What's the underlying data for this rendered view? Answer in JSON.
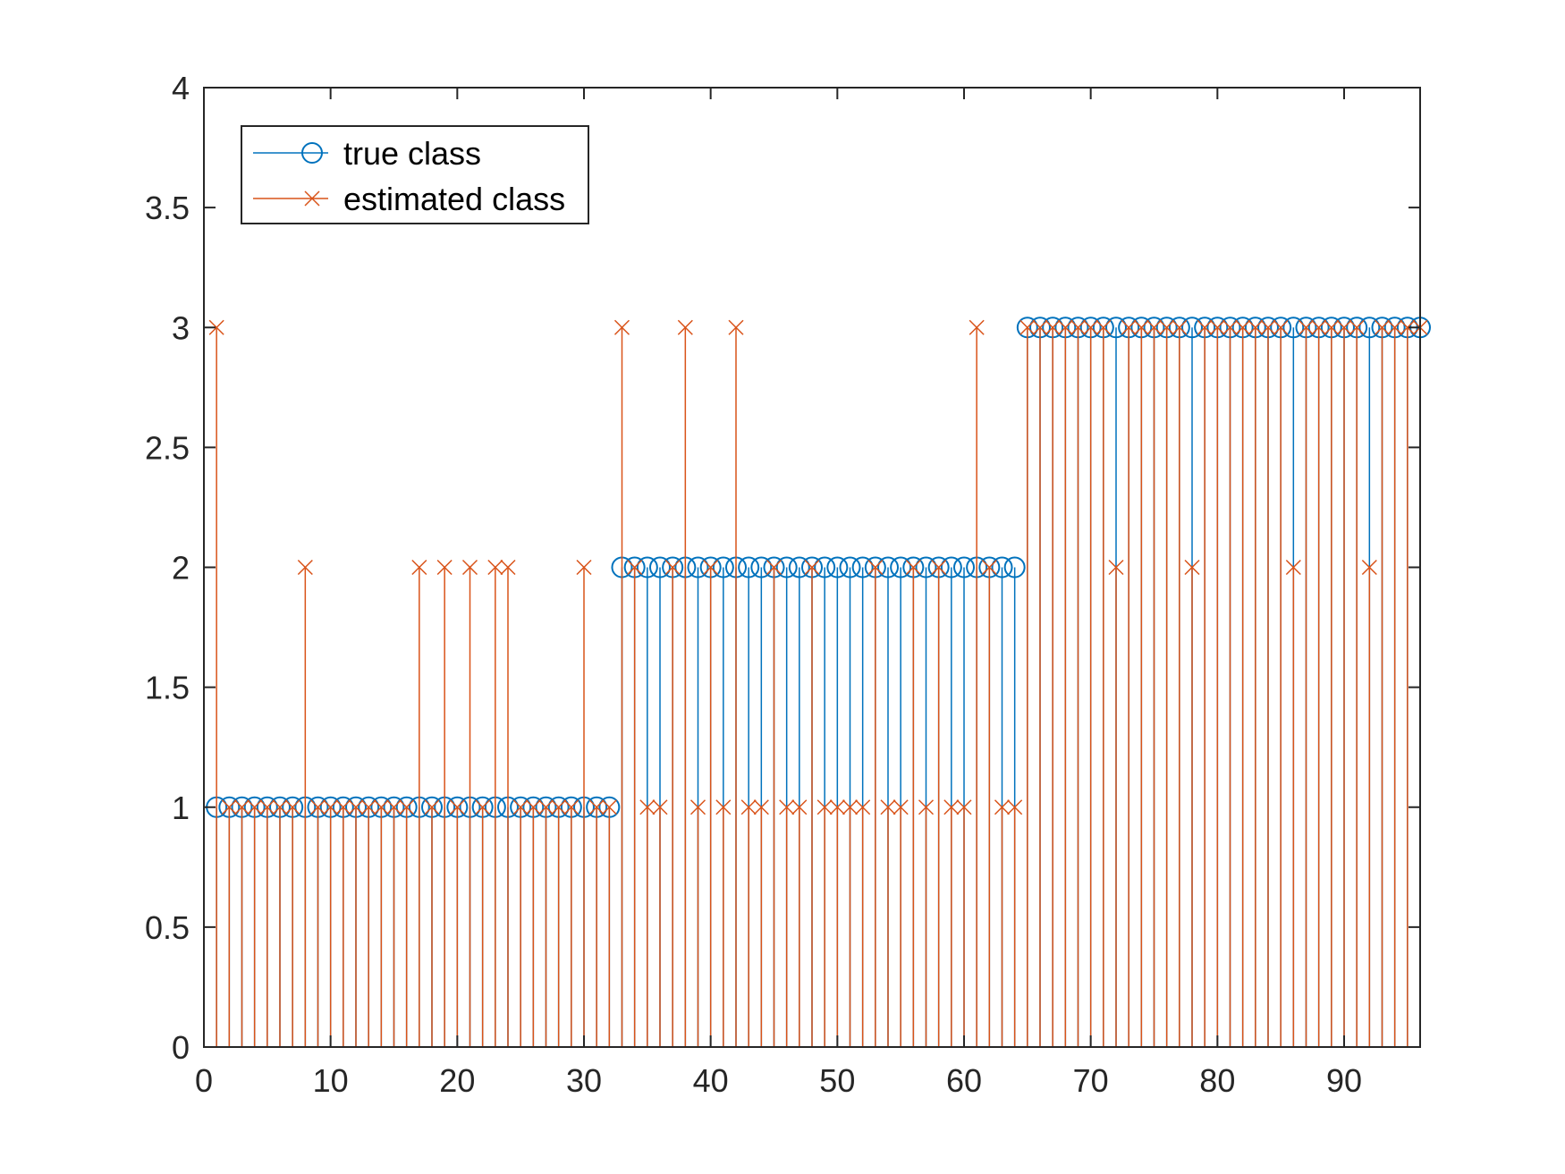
{
  "chart_data": {
    "type": "stem",
    "title": "",
    "xlabel": "",
    "ylabel": "",
    "xlim": [
      0,
      96
    ],
    "ylim": [
      0,
      4
    ],
    "xticks": [
      0,
      10,
      20,
      30,
      40,
      50,
      60,
      70,
      80,
      90
    ],
    "yticks": [
      0,
      0.5,
      1,
      1.5,
      2,
      2.5,
      3,
      3.5,
      4
    ],
    "xtick_labels": [
      "0",
      "10",
      "20",
      "30",
      "40",
      "50",
      "60",
      "70",
      "80",
      "90"
    ],
    "ytick_labels": [
      "0",
      "0.5",
      "1",
      "1.5",
      "2",
      "2.5",
      "3",
      "3.5",
      "4"
    ],
    "grid": false,
    "legend_position": "top-left",
    "x": [
      1,
      2,
      3,
      4,
      5,
      6,
      7,
      8,
      9,
      10,
      11,
      12,
      13,
      14,
      15,
      16,
      17,
      18,
      19,
      20,
      21,
      22,
      23,
      24,
      25,
      26,
      27,
      28,
      29,
      30,
      31,
      32,
      33,
      34,
      35,
      36,
      37,
      38,
      39,
      40,
      41,
      42,
      43,
      44,
      45,
      46,
      47,
      48,
      49,
      50,
      51,
      52,
      53,
      54,
      55,
      56,
      57,
      58,
      59,
      60,
      61,
      62,
      63,
      64,
      65,
      66,
      67,
      68,
      69,
      70,
      71,
      72,
      73,
      74,
      75,
      76,
      77,
      78,
      79,
      80,
      81,
      82,
      83,
      84,
      85,
      86,
      87,
      88,
      89,
      90,
      91,
      92,
      93,
      94,
      95,
      96
    ],
    "series": [
      {
        "name": "true class",
        "color": "#0072BD",
        "marker": "circle",
        "values": [
          1,
          1,
          1,
          1,
          1,
          1,
          1,
          1,
          1,
          1,
          1,
          1,
          1,
          1,
          1,
          1,
          1,
          1,
          1,
          1,
          1,
          1,
          1,
          1,
          1,
          1,
          1,
          1,
          1,
          1,
          1,
          1,
          2,
          2,
          2,
          2,
          2,
          2,
          2,
          2,
          2,
          2,
          2,
          2,
          2,
          2,
          2,
          2,
          2,
          2,
          2,
          2,
          2,
          2,
          2,
          2,
          2,
          2,
          2,
          2,
          2,
          2,
          2,
          2,
          3,
          3,
          3,
          3,
          3,
          3,
          3,
          3,
          3,
          3,
          3,
          3,
          3,
          3,
          3,
          3,
          3,
          3,
          3,
          3,
          3,
          3,
          3,
          3,
          3,
          3,
          3,
          3,
          3,
          3,
          3,
          3
        ]
      },
      {
        "name": "estimated class",
        "color": "#D95319",
        "marker": "x",
        "values": [
          3,
          1,
          1,
          1,
          1,
          1,
          1,
          2,
          1,
          1,
          1,
          1,
          1,
          1,
          1,
          1,
          2,
          1,
          2,
          1,
          2,
          1,
          2,
          2,
          1,
          1,
          1,
          1,
          1,
          2,
          1,
          1,
          3,
          2,
          1,
          1,
          2,
          3,
          1,
          2,
          1,
          3,
          1,
          1,
          2,
          1,
          1,
          2,
          1,
          1,
          1,
          1,
          2,
          1,
          1,
          2,
          1,
          2,
          1,
          1,
          3,
          2,
          1,
          1,
          3,
          3,
          3,
          3,
          3,
          3,
          3,
          2,
          3,
          3,
          3,
          3,
          3,
          2,
          3,
          3,
          3,
          3,
          3,
          3,
          3,
          2,
          3,
          3,
          3,
          3,
          3,
          2,
          3,
          3,
          3,
          3
        ]
      }
    ]
  }
}
